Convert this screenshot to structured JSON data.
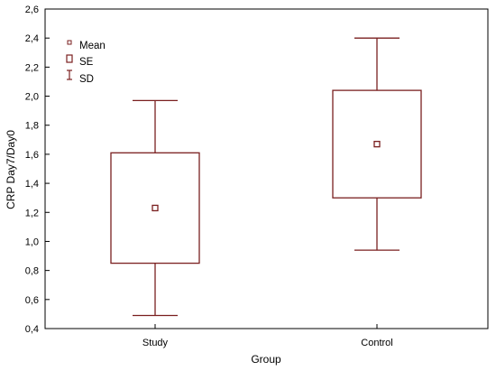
{
  "chart_data": {
    "type": "boxplot",
    "xlabel": "Group",
    "ylabel": "CRP Day7/Day0",
    "ylim": [
      0.4,
      2.6
    ],
    "yticks": [
      "0,4",
      "0,6",
      "0,8",
      "1,0",
      "1,2",
      "1,4",
      "1,6",
      "1,8",
      "2,0",
      "2,2",
      "2,4",
      "2,6"
    ],
    "ytick_values": [
      0.4,
      0.6,
      0.8,
      1.0,
      1.2,
      1.4,
      1.6,
      1.8,
      2.0,
      2.2,
      2.4,
      2.6
    ],
    "categories": [
      "Study",
      "Control"
    ],
    "series": [
      {
        "group": "Study",
        "mean": 1.23,
        "se_low": 0.85,
        "se_high": 1.61,
        "sd_low": 0.49,
        "sd_high": 1.97
      },
      {
        "group": "Control",
        "mean": 1.67,
        "se_low": 1.3,
        "se_high": 2.04,
        "sd_low": 0.94,
        "sd_high": 2.4
      }
    ],
    "legend": {
      "placement": "top-left",
      "entries": [
        {
          "label": "Mean",
          "icon": "small-square-icon"
        },
        {
          "label": "SE",
          "icon": "rectangle-icon"
        },
        {
          "label": "SD",
          "icon": "whisker-icon"
        }
      ]
    },
    "colors": {
      "box": "#7a1f1f",
      "axis": "#000000"
    },
    "grid": false
  }
}
